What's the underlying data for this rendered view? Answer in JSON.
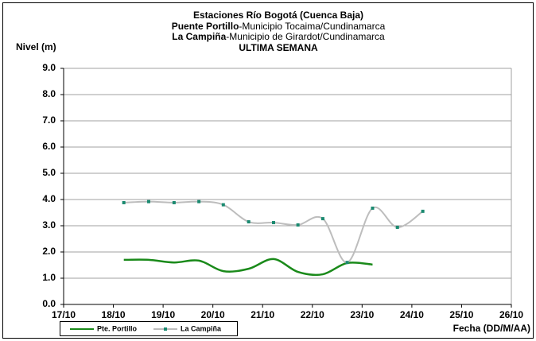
{
  "chart_data": {
    "type": "line",
    "title": "Estaciones Río Bogotá (Cuenca Baja)",
    "subtitles": [
      {
        "station": "Puente Portillo",
        "location": "-Municipio Tocaima/Cundinamarca"
      },
      {
        "station": "La Campiña",
        "location": "-Municipio de Girardot/Cundinamarca"
      }
    ],
    "period": "ULTIMA SEMANA",
    "y_label": "Nivel (m)",
    "x_label": "Fecha (DD/M/AA)",
    "xlim": [
      17,
      26
    ],
    "xticks": [
      {
        "value": 17,
        "label": "17/10"
      },
      {
        "value": 18,
        "label": "18/10"
      },
      {
        "value": 19,
        "label": "19/10"
      },
      {
        "value": 20,
        "label": "20/10"
      },
      {
        "value": 21,
        "label": "21/10"
      },
      {
        "value": 22,
        "label": "22/10"
      },
      {
        "value": 23,
        "label": "23/10"
      },
      {
        "value": 24,
        "label": "24/10"
      },
      {
        "value": 25,
        "label": "25/10"
      },
      {
        "value": 26,
        "label": "26/10"
      }
    ],
    "ylim": [
      0,
      9
    ],
    "yticks": [
      {
        "value": 0,
        "label": "0.0"
      },
      {
        "value": 1,
        "label": "1.0"
      },
      {
        "value": 2,
        "label": "2.0"
      },
      {
        "value": 3,
        "label": "3.0"
      },
      {
        "value": 4,
        "label": "4.0"
      },
      {
        "value": 5,
        "label": "5.0"
      },
      {
        "value": 6,
        "label": "6.0"
      },
      {
        "value": 7,
        "label": "7.0"
      },
      {
        "value": 8,
        "label": "8.0"
      },
      {
        "value": 9,
        "label": "9.0"
      }
    ],
    "grid": true,
    "series": [
      {
        "name": "Pte. Portillo",
        "color": "#1a8a1a",
        "markers": false,
        "x": [
          18.21,
          18.71,
          19.22,
          19.72,
          20.21,
          20.72,
          21.22,
          21.71,
          22.21,
          22.7,
          23.21
        ],
        "values": [
          1.7,
          1.7,
          1.6,
          1.67,
          1.27,
          1.36,
          1.73,
          1.24,
          1.15,
          1.58,
          1.52
        ]
      },
      {
        "name": "La Campiña",
        "color": "#bdbdbd",
        "marker_color": "#1a8a70",
        "markers": true,
        "x": [
          18.21,
          18.71,
          19.22,
          19.72,
          20.21,
          20.72,
          21.22,
          21.71,
          22.21,
          22.7,
          23.21,
          23.71,
          24.22
        ],
        "values": [
          3.88,
          3.92,
          3.88,
          3.92,
          3.8,
          3.15,
          3.12,
          3.03,
          3.27,
          1.6,
          3.67,
          2.94,
          3.55
        ]
      }
    ]
  }
}
